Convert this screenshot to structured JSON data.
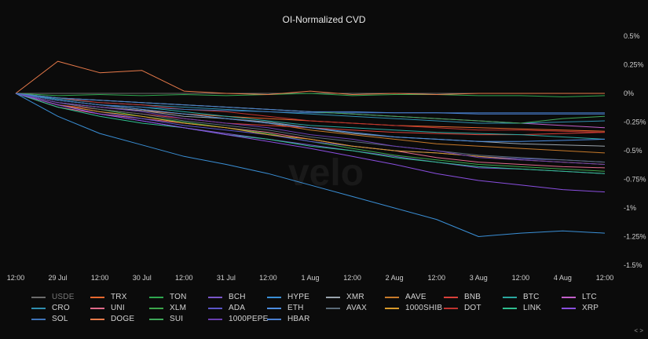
{
  "chart_data": {
    "type": "line",
    "title": "OI-Normalized CVD",
    "watermark": "velo",
    "x_ticks": [
      "12:00",
      "29 Jul",
      "12:00",
      "30 Jul",
      "12:00",
      "31 Jul",
      "12:00",
      "1 Aug",
      "12:00",
      "2 Aug",
      "12:00",
      "3 Aug",
      "12:00",
      "4 Aug",
      "12:00"
    ],
    "y_ticks": [
      "0.5%",
      "0.25%",
      "0%",
      "-0.25%",
      "-0.5%",
      "-0.75%",
      "-1%",
      "-1.25%",
      "-1.5%"
    ],
    "ylim": [
      -1.5,
      0.5
    ],
    "y_unit": "%",
    "grid": false,
    "legend_position": "bottom",
    "series": [
      {
        "name": "USDE",
        "color": "#6b6b6b",
        "values": [
          0,
          0,
          0,
          0,
          0,
          0,
          0,
          0,
          0,
          0,
          0,
          0,
          0,
          0,
          0
        ]
      },
      {
        "name": "TRX",
        "color": "#e8682f",
        "values": [
          0,
          -0.08,
          -0.12,
          -0.15,
          -0.18,
          -0.2,
          -0.22,
          -0.24,
          -0.26,
          -0.28,
          -0.29,
          -0.3,
          -0.31,
          -0.32,
          -0.33
        ]
      },
      {
        "name": "TON",
        "color": "#2fa84f",
        "values": [
          0,
          -0.02,
          -0.01,
          -0.02,
          -0.01,
          -0.02,
          -0.01,
          0,
          -0.02,
          -0.01,
          -0.01,
          -0.02,
          -0.02,
          -0.03,
          -0.02
        ]
      },
      {
        "name": "BCH",
        "color": "#7a56c9",
        "values": [
          0,
          -0.1,
          -0.18,
          -0.24,
          -0.3,
          -0.35,
          -0.4,
          -0.45,
          -0.5,
          -0.55,
          -0.6,
          -0.65,
          -0.66,
          -0.68,
          -0.7
        ]
      },
      {
        "name": "HYPE",
        "color": "#3a8fd6",
        "values": [
          0,
          -0.2,
          -0.35,
          -0.45,
          -0.55,
          -0.62,
          -0.7,
          -0.8,
          -0.9,
          -1.0,
          -1.1,
          -1.25,
          -1.22,
          -1.2,
          -1.22
        ]
      },
      {
        "name": "XMR",
        "color": "#9aa4ad",
        "values": [
          0,
          -0.08,
          -0.12,
          -0.15,
          -0.2,
          -0.22,
          -0.25,
          -0.3,
          -0.35,
          -0.38,
          -0.4,
          -0.42,
          -0.44,
          -0.45,
          -0.46
        ]
      },
      {
        "name": "AAVE",
        "color": "#c77a2a",
        "values": [
          0,
          -0.06,
          -0.1,
          -0.14,
          -0.18,
          -0.22,
          -0.26,
          -0.32,
          -0.36,
          -0.4,
          -0.44,
          -0.46,
          -0.48,
          -0.5,
          -0.52
        ]
      },
      {
        "name": "BNB",
        "color": "#d9403a",
        "values": [
          0,
          -0.1,
          -0.14,
          -0.18,
          -0.22,
          -0.26,
          -0.28,
          -0.3,
          -0.32,
          -0.34,
          -0.35,
          -0.36,
          -0.36,
          -0.35,
          -0.34
        ]
      },
      {
        "name": "BTC",
        "color": "#2aa7a0",
        "values": [
          0,
          -0.06,
          -0.1,
          -0.12,
          -0.16,
          -0.2,
          -0.24,
          -0.28,
          -0.3,
          -0.32,
          -0.34,
          -0.35,
          -0.36,
          -0.38,
          -0.4
        ]
      },
      {
        "name": "LTC",
        "color": "#c35fc9",
        "values": [
          0,
          -0.04,
          -0.06,
          -0.08,
          -0.1,
          -0.12,
          -0.14,
          -0.16,
          -0.18,
          -0.2,
          -0.22,
          -0.24,
          -0.26,
          -0.28,
          -0.3
        ]
      },
      {
        "name": "CRO",
        "color": "#2f8fb0",
        "values": [
          0,
          -0.05,
          -0.08,
          -0.1,
          -0.12,
          -0.14,
          -0.16,
          -0.18,
          -0.2,
          -0.22,
          -0.24,
          -0.26,
          -0.26,
          -0.25,
          -0.24
        ]
      },
      {
        "name": "UNI",
        "color": "#e06a8a",
        "values": [
          0,
          -0.12,
          -0.18,
          -0.22,
          -0.26,
          -0.3,
          -0.34,
          -0.4,
          -0.46,
          -0.5,
          -0.56,
          -0.6,
          -0.62,
          -0.64,
          -0.65
        ]
      },
      {
        "name": "XLM",
        "color": "#3ca64a",
        "values": [
          0,
          -0.08,
          -0.14,
          -0.2,
          -0.25,
          -0.3,
          -0.35,
          -0.42,
          -0.48,
          -0.54,
          -0.58,
          -0.62,
          -0.64,
          -0.66,
          -0.68
        ]
      },
      {
        "name": "ADA",
        "color": "#5b56c9",
        "values": [
          0,
          -0.1,
          -0.16,
          -0.22,
          -0.28,
          -0.32,
          -0.36,
          -0.42,
          -0.46,
          -0.5,
          -0.52,
          -0.55,
          -0.57,
          -0.58,
          -0.6
        ]
      },
      {
        "name": "ETH",
        "color": "#4c8de0",
        "values": [
          0,
          -0.06,
          -0.1,
          -0.14,
          -0.18,
          -0.22,
          -0.26,
          -0.3,
          -0.34,
          -0.38,
          -0.4,
          -0.42,
          -0.42,
          -0.41,
          -0.4
        ]
      },
      {
        "name": "AVAX",
        "color": "#5a6b78",
        "values": [
          0,
          -0.08,
          -0.14,
          -0.18,
          -0.24,
          -0.28,
          -0.32,
          -0.38,
          -0.42,
          -0.46,
          -0.5,
          -0.54,
          -0.56,
          -0.58,
          -0.6
        ]
      },
      {
        "name": "1000SHIB",
        "color": "#d99a2a",
        "values": [
          0,
          -0.1,
          -0.16,
          -0.2,
          -0.26,
          -0.3,
          -0.36,
          -0.4,
          -0.46,
          -0.5,
          -0.52,
          -0.55,
          -0.58,
          -0.6,
          -0.62
        ]
      },
      {
        "name": "DOT",
        "color": "#c0332f",
        "values": [
          0,
          -0.04,
          -0.08,
          -0.1,
          -0.14,
          -0.16,
          -0.2,
          -0.24,
          -0.26,
          -0.28,
          -0.3,
          -0.32,
          -0.32,
          -0.33,
          -0.34
        ]
      },
      {
        "name": "LINK",
        "color": "#2fbf8f",
        "values": [
          0,
          -0.12,
          -0.2,
          -0.26,
          -0.3,
          -0.36,
          -0.4,
          -0.46,
          -0.5,
          -0.56,
          -0.6,
          -0.64,
          -0.66,
          -0.68,
          -0.7
        ]
      },
      {
        "name": "XRP",
        "color": "#8a4fe0",
        "values": [
          0,
          -0.1,
          -0.18,
          -0.24,
          -0.3,
          -0.36,
          -0.42,
          -0.48,
          -0.55,
          -0.62,
          -0.7,
          -0.76,
          -0.8,
          -0.84,
          -0.86
        ]
      },
      {
        "name": "SOL",
        "color": "#3f73b8",
        "values": [
          0,
          -0.06,
          -0.1,
          -0.12,
          -0.14,
          -0.15,
          -0.16,
          -0.17,
          -0.17,
          -0.17,
          -0.17,
          -0.17,
          -0.17,
          -0.17,
          -0.17
        ]
      },
      {
        "name": "DOGE",
        "color": "#e87a4a",
        "values": [
          0,
          0.28,
          0.18,
          0.2,
          0.02,
          0.0,
          -0.01,
          0.02,
          -0.01,
          0.0,
          -0.01,
          0.0,
          0.0,
          0.0,
          0.0
        ]
      },
      {
        "name": "SUI",
        "color": "#3fa85a",
        "values": [
          0,
          -0.04,
          -0.06,
          -0.08,
          -0.1,
          -0.12,
          -0.14,
          -0.16,
          -0.18,
          -0.2,
          -0.22,
          -0.24,
          -0.26,
          -0.22,
          -0.2
        ]
      },
      {
        "name": "1000PEPE",
        "color": "#6a3fb0",
        "values": [
          0,
          -0.08,
          -0.12,
          -0.16,
          -0.22,
          -0.26,
          -0.3,
          -0.36,
          -0.4,
          -0.46,
          -0.5,
          -0.56,
          -0.58,
          -0.6,
          -0.62
        ]
      },
      {
        "name": "HBAR",
        "color": "#4a7fd0",
        "values": [
          0,
          -0.04,
          -0.06,
          -0.08,
          -0.1,
          -0.12,
          -0.14,
          -0.16,
          -0.16,
          -0.17,
          -0.17,
          -0.18,
          -0.18,
          -0.18,
          -0.18
        ]
      }
    ]
  },
  "nav_label": "< >"
}
